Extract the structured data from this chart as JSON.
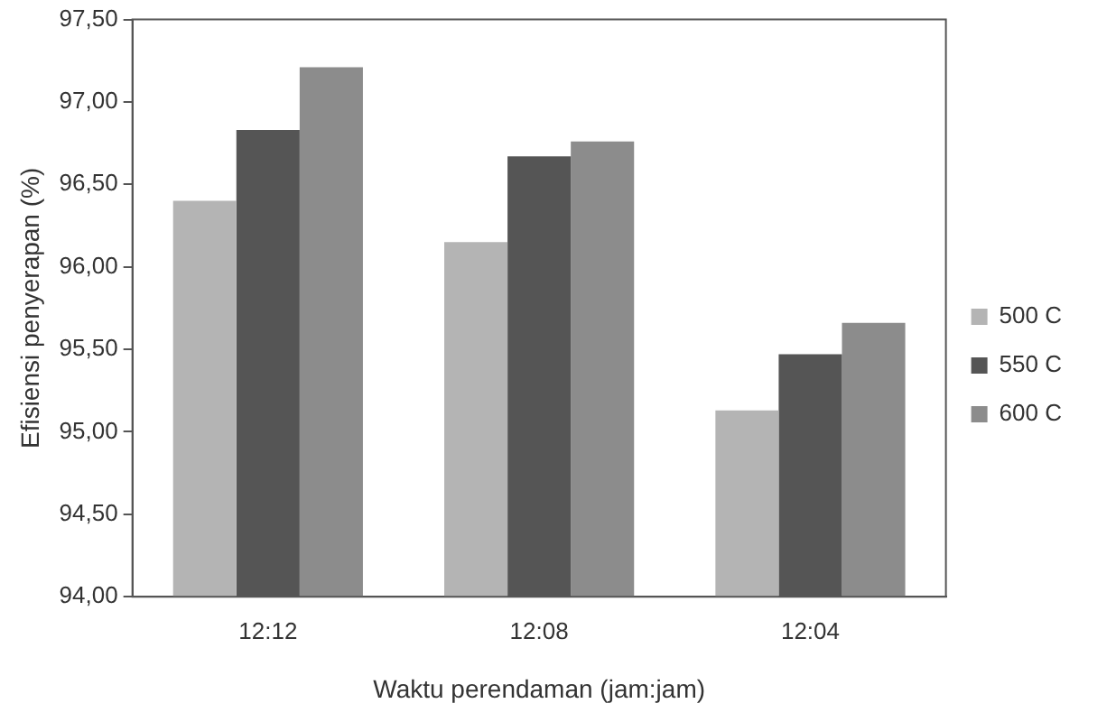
{
  "chart_data": {
    "type": "bar",
    "xlabel": "Waktu perendaman (jam:jam)",
    "ylabel": "Efisiensi penyerapan (%)",
    "categories": [
      "12:12",
      "12:08",
      "12:04"
    ],
    "series": [
      {
        "name": "500 C",
        "color": "#b4b4b4",
        "values": [
          96.4,
          96.15,
          95.13
        ]
      },
      {
        "name": "550 C",
        "color": "#555555",
        "values": [
          96.83,
          96.67,
          95.47
        ]
      },
      {
        "name": "600 C",
        "color": "#8c8c8c",
        "values": [
          97.21,
          96.76,
          95.66
        ]
      }
    ],
    "ylim": [
      94,
      97.5
    ],
    "yticks": [
      {
        "value": 94,
        "label": "94,00"
      },
      {
        "value": 94.5,
        "label": "94,50"
      },
      {
        "value": 95,
        "label": "95,00"
      },
      {
        "value": 95.5,
        "label": "95,50"
      },
      {
        "value": 96,
        "label": "96,00"
      },
      {
        "value": 96.5,
        "label": "96,50"
      },
      {
        "value": 97,
        "label": "97,00"
      },
      {
        "value": 97.5,
        "label": "97,50"
      }
    ],
    "grid": false,
    "legend": "right"
  }
}
